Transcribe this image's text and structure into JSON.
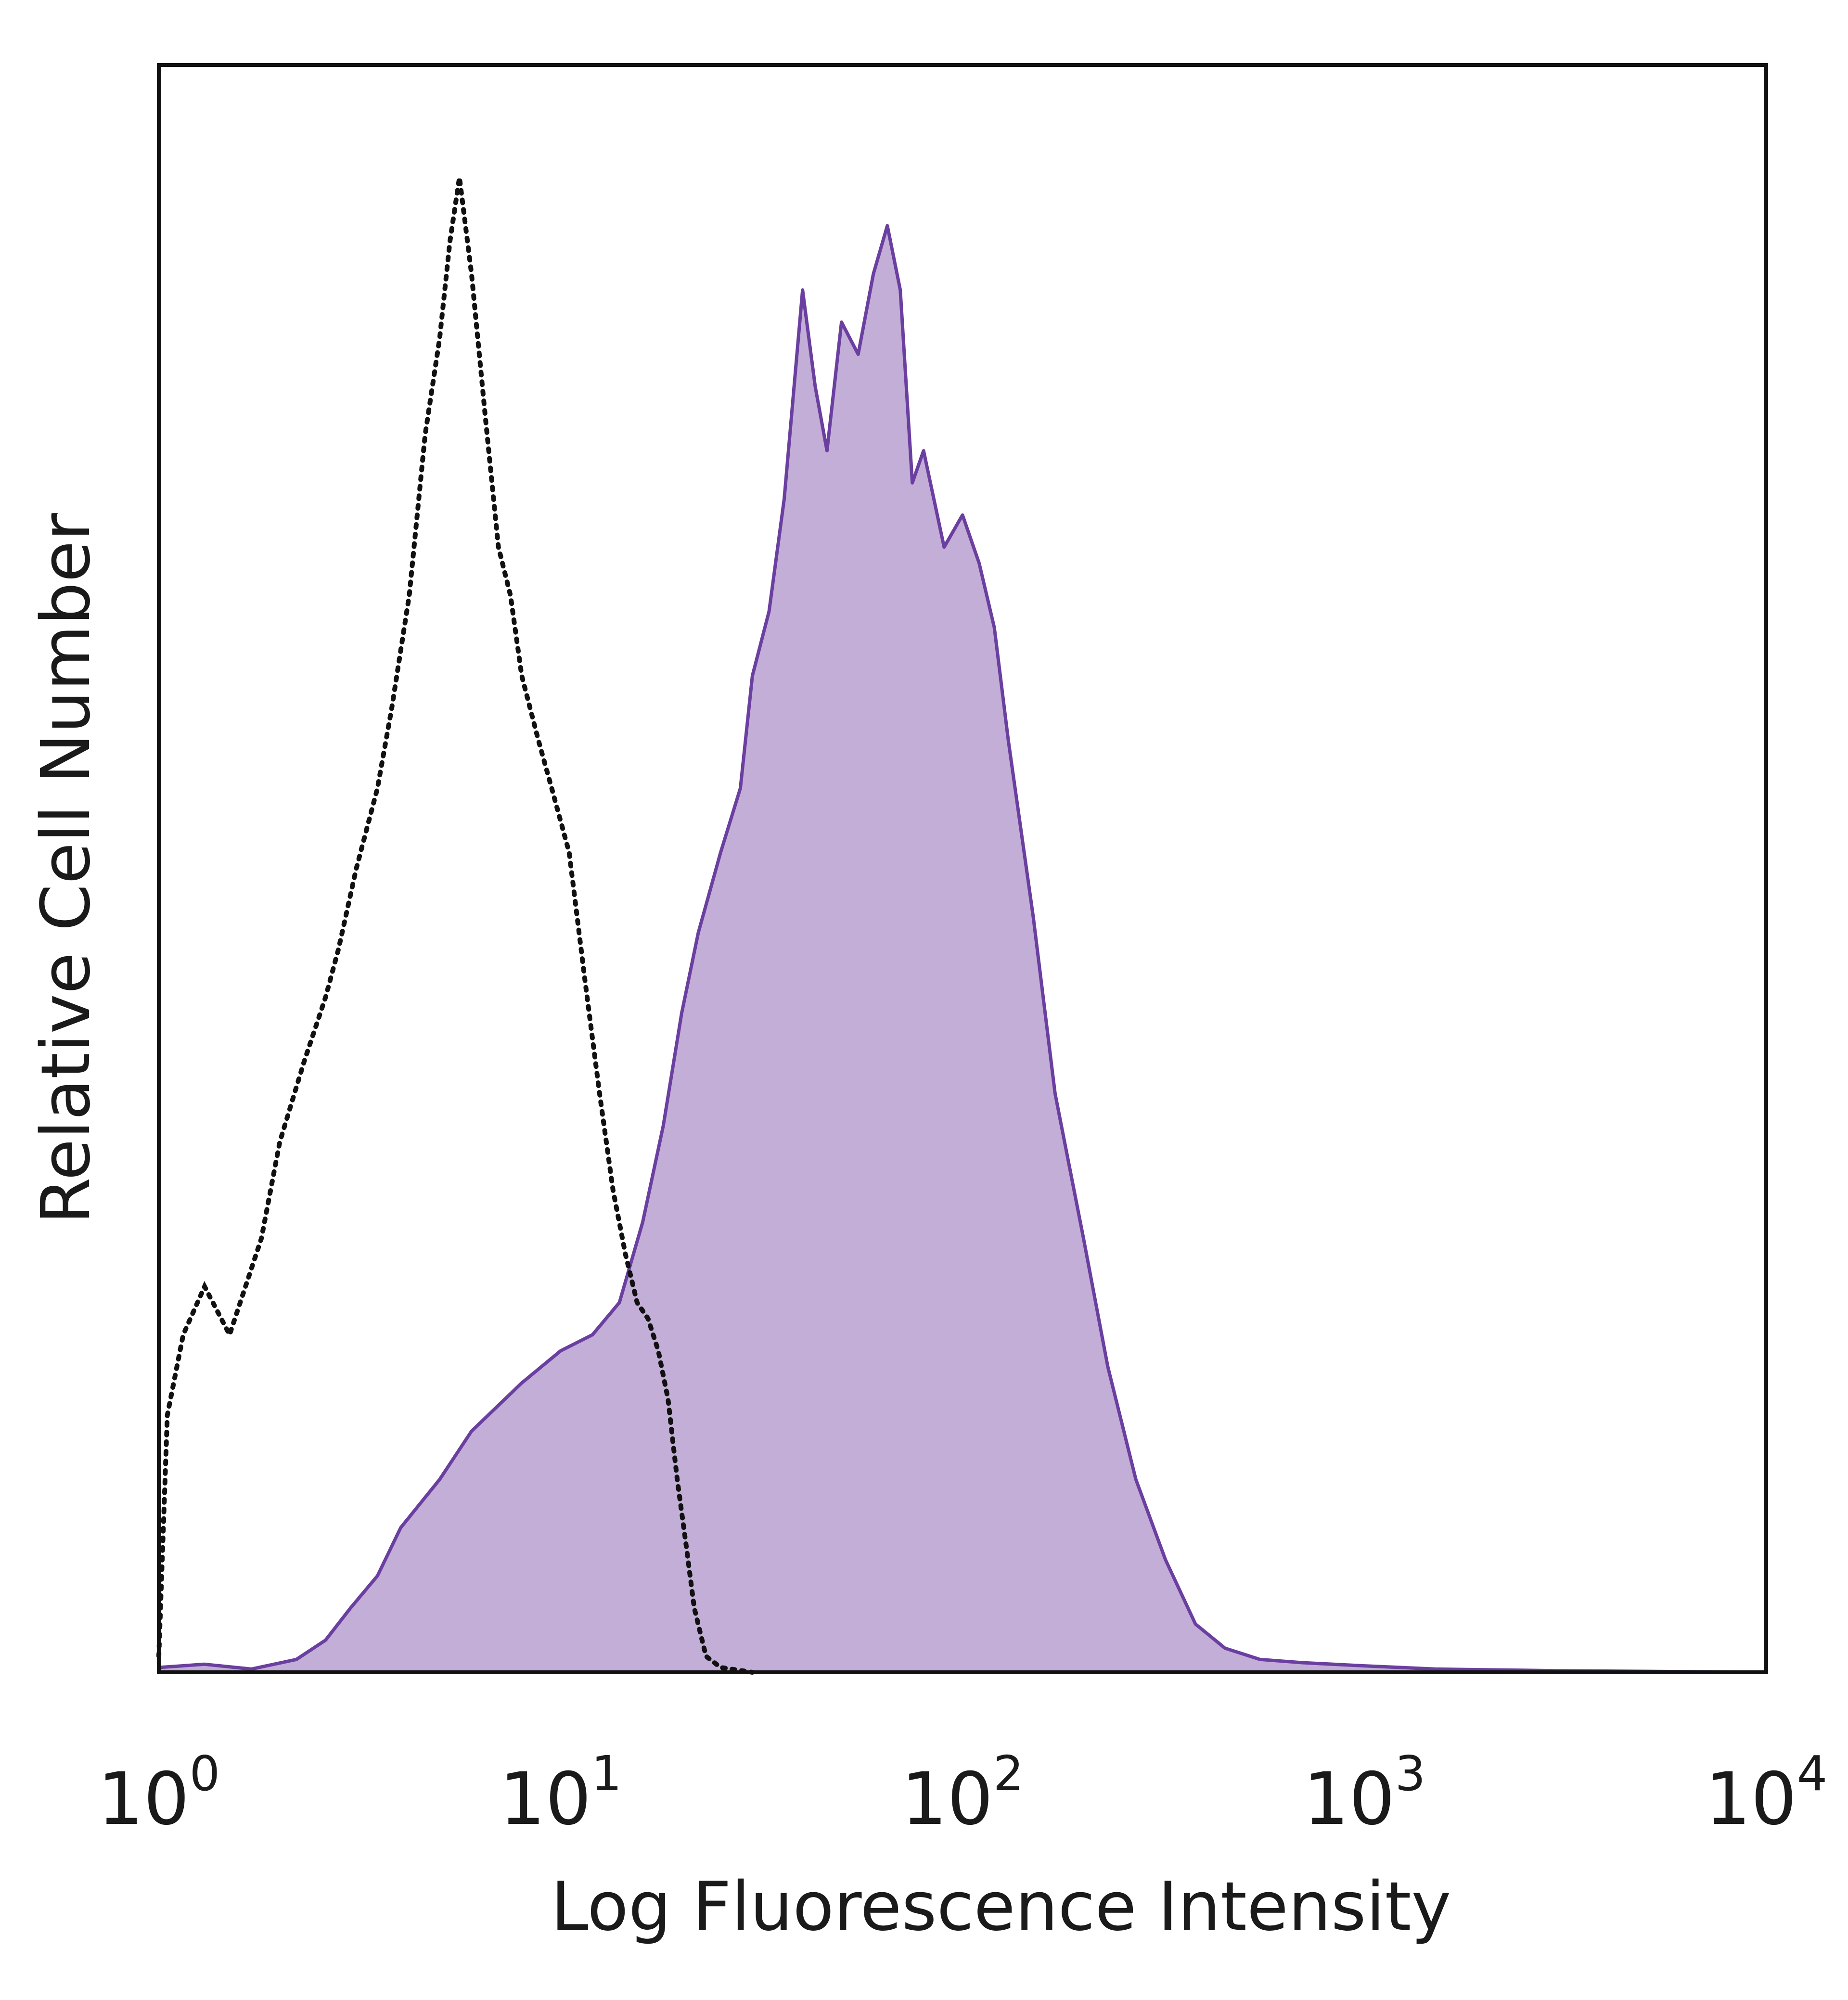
{
  "chart_data": {
    "type": "area",
    "title": "",
    "xlabel": "Log Fluorescence Intensity",
    "ylabel": "Relative Cell Number",
    "x_scale": "log",
    "xlim": [
      1,
      10000
    ],
    "ylim": [
      0,
      1
    ],
    "grid": false,
    "legend": "none",
    "x_ticks": [
      {
        "base": "10",
        "exp": "0",
        "value": 1
      },
      {
        "base": "10",
        "exp": "1",
        "value": 10
      },
      {
        "base": "10",
        "exp": "2",
        "value": 100
      },
      {
        "base": "10",
        "exp": "3",
        "value": 1000
      },
      {
        "base": "10",
        "exp": "4",
        "value": 10000
      }
    ],
    "series": [
      {
        "style": "filled",
        "color": "#6b3fa0",
        "fill": "#c2aed6",
        "x": [
          1,
          1.3,
          1.7,
          2.2,
          2.6,
          3.0,
          3.5,
          4.0,
          5.0,
          6.0,
          8.0,
          10,
          12,
          14,
          16,
          18,
          20,
          22,
          25,
          28,
          30,
          33,
          36,
          40,
          43,
          46,
          50,
          55,
          60,
          65,
          70,
          75,
          80,
          90,
          100,
          110,
          120,
          130,
          150,
          170,
          200,
          230,
          270,
          320,
          380,
          450,
          550,
          700,
          1000,
          1500,
          3000,
          10000
        ],
        "y": [
          0.003,
          0.005,
          0.002,
          0.008,
          0.02,
          0.04,
          0.06,
          0.09,
          0.12,
          0.15,
          0.18,
          0.2,
          0.21,
          0.23,
          0.28,
          0.34,
          0.41,
          0.46,
          0.51,
          0.55,
          0.62,
          0.66,
          0.73,
          0.86,
          0.8,
          0.76,
          0.84,
          0.82,
          0.87,
          0.9,
          0.86,
          0.74,
          0.76,
          0.7,
          0.72,
          0.69,
          0.65,
          0.58,
          0.47,
          0.36,
          0.27,
          0.19,
          0.12,
          0.07,
          0.03,
          0.015,
          0.008,
          0.006,
          0.004,
          0.002,
          0.001,
          0.0
        ]
      },
      {
        "style": "dotted",
        "color": "#111111",
        "x": [
          1.0,
          1.05,
          1.15,
          1.3,
          1.5,
          1.8,
          2.0,
          2.3,
          2.6,
          2.8,
          3.1,
          3.5,
          3.8,
          4.2,
          4.6,
          5.0,
          5.3,
          5.6,
          6.0,
          6.5,
          7.0,
          7.5,
          8.0,
          8.8,
          9.5,
          10.5,
          11.5,
          12.5,
          13.5,
          14.5,
          15.5,
          16.5,
          17.5,
          18.5,
          19.5,
          20.5,
          21.5,
          23.0,
          25.0,
          30.0
        ],
        "y": [
          0.01,
          0.16,
          0.21,
          0.24,
          0.21,
          0.27,
          0.33,
          0.38,
          0.42,
          0.45,
          0.5,
          0.55,
          0.6,
          0.67,
          0.77,
          0.83,
          0.89,
          0.93,
          0.87,
          0.78,
          0.7,
          0.67,
          0.62,
          0.58,
          0.55,
          0.51,
          0.43,
          0.36,
          0.3,
          0.26,
          0.23,
          0.22,
          0.2,
          0.17,
          0.12,
          0.08,
          0.04,
          0.01,
          0.003,
          0.0
        ]
      }
    ]
  }
}
